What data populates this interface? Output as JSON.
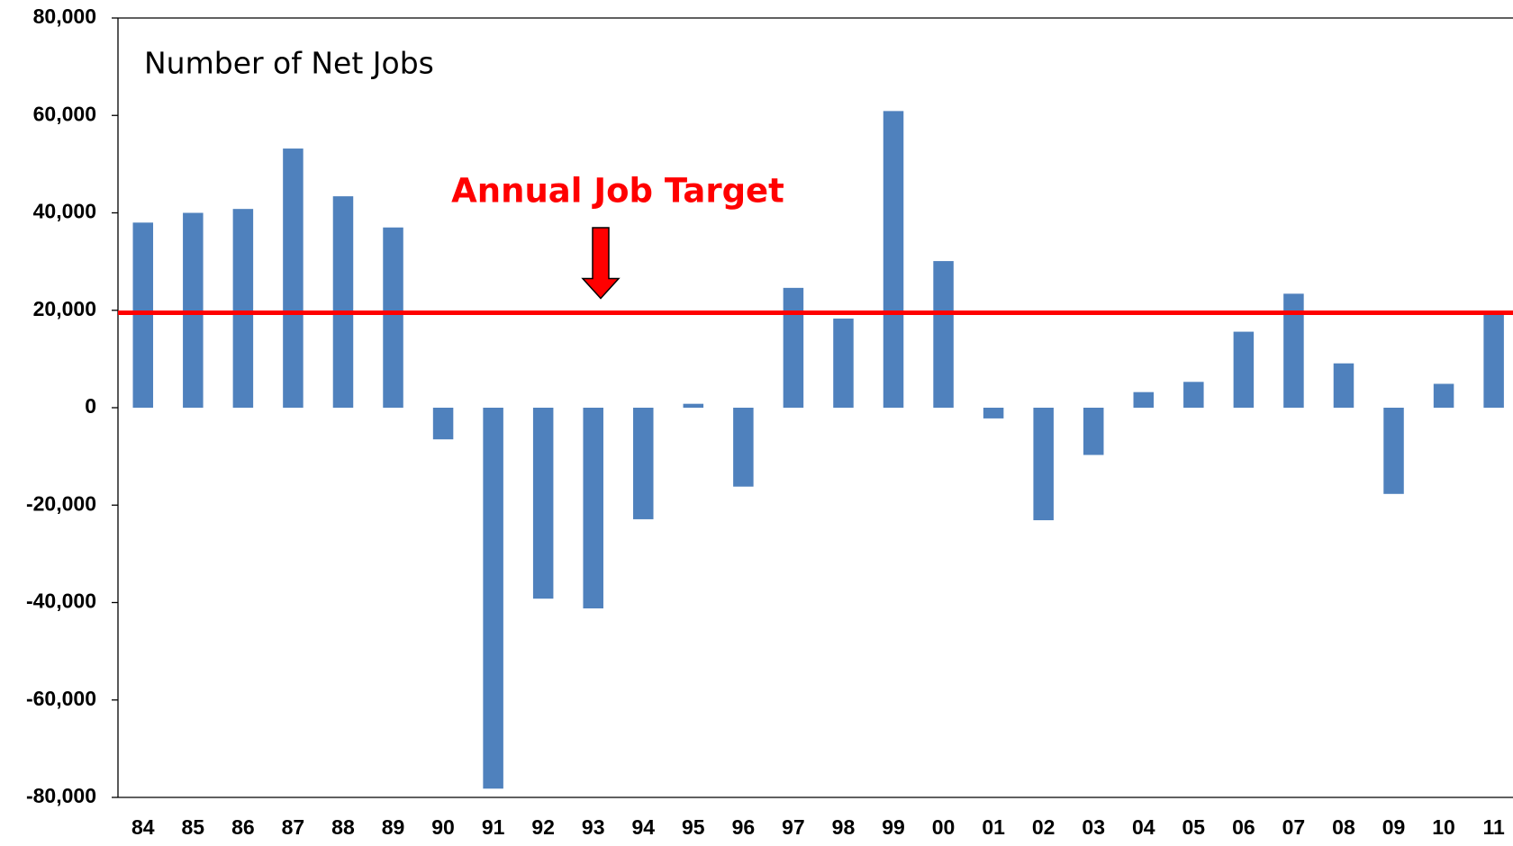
{
  "chart_data": {
    "type": "bar",
    "title": "Number of Net Jobs",
    "categories": [
      "84",
      "85",
      "86",
      "87",
      "88",
      "89",
      "90",
      "91",
      "92",
      "93",
      "94",
      "95",
      "96",
      "97",
      "98",
      "99",
      "00",
      "01",
      "02",
      "03",
      "04",
      "05",
      "06",
      "07",
      "08",
      "09",
      "10",
      "11"
    ],
    "values": [
      38000,
      40000,
      40800,
      53200,
      43400,
      37000,
      -6500,
      -78200,
      -39200,
      -41200,
      -22900,
      800,
      -16200,
      24600,
      18300,
      60900,
      30100,
      -2200,
      -23100,
      -9700,
      3200,
      5300,
      15600,
      23400,
      9100,
      -17700,
      4900,
      19300
    ],
    "color": "#4f81bd",
    "ylim": [
      -80000,
      80000
    ],
    "yticks": [
      {
        "value": -80000,
        "label": "-80,000"
      },
      {
        "value": -60000,
        "label": "-60,000"
      },
      {
        "value": -40000,
        "label": "-40,000"
      },
      {
        "value": -20000,
        "label": "-20,000"
      },
      0,
      {
        "value": 20000,
        "label": "20,000"
      },
      {
        "value": 40000,
        "label": "40,000"
      },
      {
        "value": 60000,
        "label": "60,000"
      },
      {
        "value": 80000,
        "label": "80,000"
      }
    ],
    "grid": false,
    "target": {
      "value": 19500,
      "label": "Annual Job Target",
      "color": "#ff0000"
    }
  }
}
